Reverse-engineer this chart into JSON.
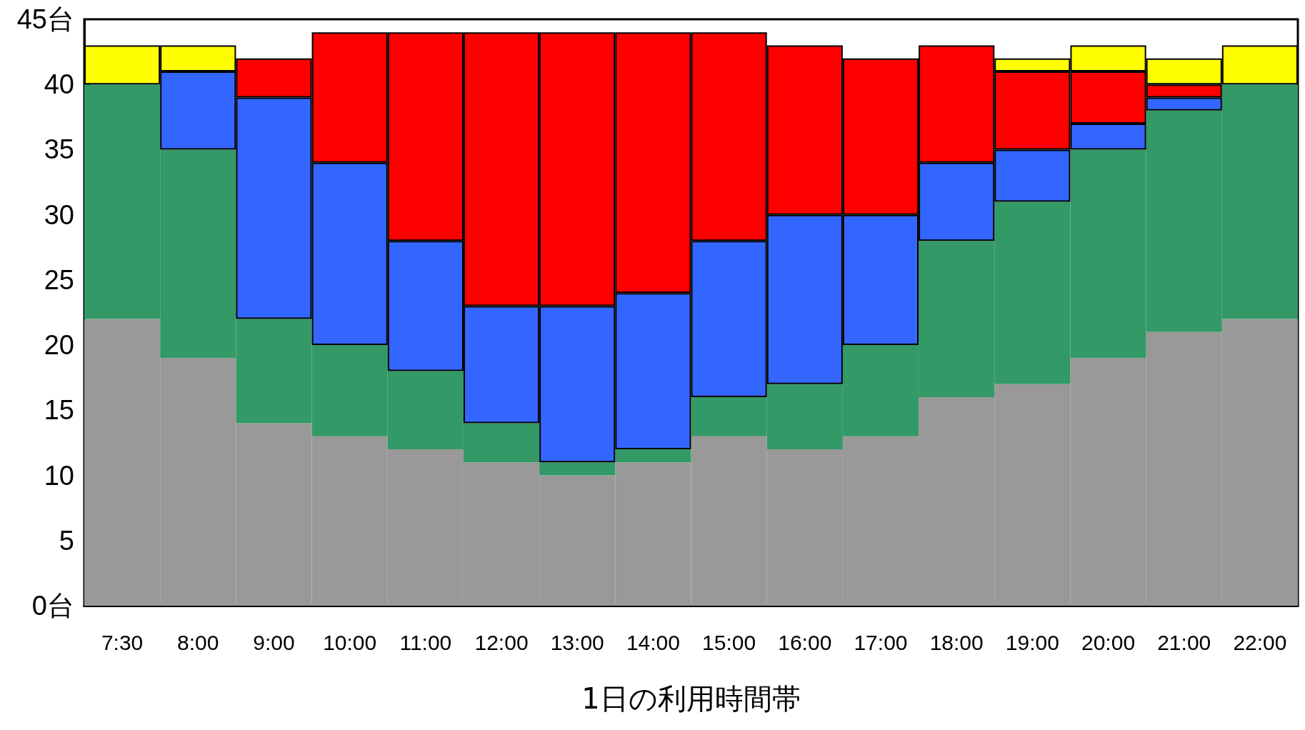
{
  "chart_data": {
    "type": "bar",
    "stacked": true,
    "xlabel": "1日の利用時間帯",
    "categories": [
      "7:30",
      "8:00",
      "9:00",
      "10:00",
      "11:00",
      "12:00",
      "13:00",
      "14:00",
      "15:00",
      "16:00",
      "17:00",
      "18:00",
      "19:00",
      "20:00",
      "21:00",
      "22:00"
    ],
    "series": [
      {
        "color": "#999999",
        "values": [
          22,
          19,
          14,
          13,
          12,
          11,
          10,
          11,
          13,
          12,
          13,
          16,
          17,
          19,
          21,
          22
        ]
      },
      {
        "color": "#339966",
        "values": [
          18,
          16,
          8,
          7,
          6,
          3,
          1,
          1,
          3,
          5,
          7,
          12,
          14,
          16,
          17,
          18
        ]
      },
      {
        "color": "#3366ff",
        "values": [
          null,
          6,
          17,
          14,
          10,
          9,
          12,
          12,
          12,
          13,
          10,
          6,
          4,
          2,
          1,
          null
        ]
      },
      {
        "color": "#ff0000",
        "values": [
          null,
          null,
          3,
          10,
          16,
          21,
          21,
          20,
          16,
          13,
          12,
          9,
          6,
          4,
          1,
          null
        ]
      },
      {
        "color": "#ffff00",
        "values": [
          3,
          2,
          null,
          null,
          null,
          null,
          null,
          null,
          null,
          null,
          null,
          null,
          1,
          2,
          2,
          3
        ]
      }
    ],
    "ylim": [
      0,
      45
    ],
    "yticks": [
      {
        "value": 0,
        "label": "0台"
      },
      5,
      10,
      15,
      20,
      25,
      30,
      35,
      40,
      {
        "value": 45,
        "label": "45台"
      }
    ],
    "grid": false
  }
}
